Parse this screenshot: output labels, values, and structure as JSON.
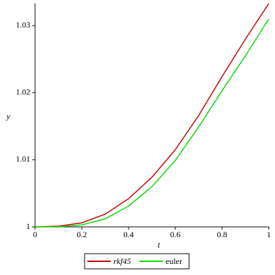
{
  "chart_data": {
    "type": "line",
    "xlabel": "t",
    "ylabel": "y",
    "x": [
      0,
      0.1,
      0.2,
      0.3,
      0.4,
      0.5,
      0.6,
      0.7,
      0.8,
      0.9,
      1
    ],
    "series": [
      {
        "name": "rkf45",
        "color": "#c80000",
        "values": [
          1,
          1.0001,
          1.0006,
          1.0019,
          1.0042,
          1.0074,
          1.0115,
          1.0166,
          1.0224,
          1.028,
          1.0333
        ]
      },
      {
        "name": "euler",
        "color": "#00e000",
        "values": [
          1,
          1.0,
          1.0003,
          1.0012,
          1.0031,
          1.006,
          1.0099,
          1.0149,
          1.0203,
          1.0255,
          1.031
        ]
      }
    ],
    "xlim": [
      0,
      1
    ],
    "ylim": [
      1,
      1.0333
    ],
    "xticks": [
      0,
      0.2,
      0.4,
      0.6,
      0.8,
      1
    ],
    "yticks": [
      1,
      1.01,
      1.02,
      1.03
    ],
    "legend": "bottom"
  }
}
